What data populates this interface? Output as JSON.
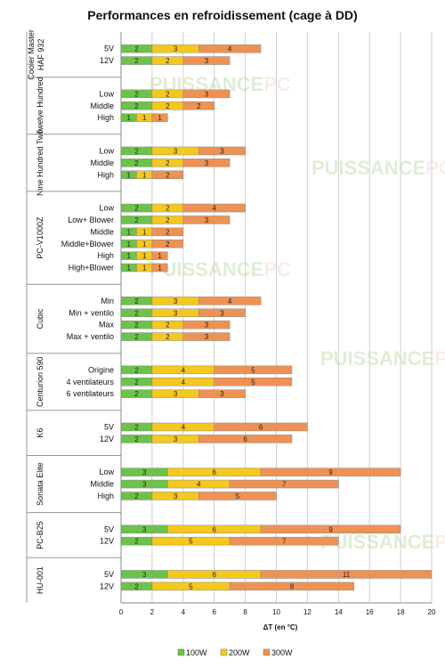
{
  "chart_data": {
    "type": "bar",
    "orientation": "horizontal",
    "stacked": true,
    "title": "Performances en refroidissement (cage à DD)",
    "xlabel": "ΔT (en °C)",
    "xlim": [
      0,
      20
    ],
    "xticks": [
      0,
      2,
      4,
      6,
      8,
      10,
      12,
      14,
      16,
      18,
      20
    ],
    "grid": true,
    "legend_position": "bottom",
    "series": [
      {
        "name": "100W",
        "color": "#6cc24a"
      },
      {
        "name": "200W",
        "color": "#f4c81e"
      },
      {
        "name": "300W",
        "color": "#ee9254"
      }
    ],
    "groups": [
      {
        "name": "Cooler Master HAF 932",
        "rows": [
          {
            "label": "5V",
            "values": [
              2,
              3,
              4
            ]
          },
          {
            "label": "12V",
            "values": [
              2,
              2,
              3
            ]
          }
        ]
      },
      {
        "name": "Twelve Hundred",
        "rows": [
          {
            "label": "Low",
            "values": [
              2,
              2,
              3
            ]
          },
          {
            "label": "Middle",
            "values": [
              2,
              2,
              2
            ]
          },
          {
            "label": "High",
            "values": [
              1,
              1,
              1
            ]
          }
        ]
      },
      {
        "name": "Nine Hundred Two",
        "rows": [
          {
            "label": "Low",
            "values": [
              2,
              3,
              3
            ]
          },
          {
            "label": "Middle",
            "values": [
              2,
              2,
              3
            ]
          },
          {
            "label": "High",
            "values": [
              1,
              1,
              2
            ]
          }
        ]
      },
      {
        "name": "PC-V1000Z",
        "rows": [
          {
            "label": "Low",
            "values": [
              2,
              2,
              4
            ]
          },
          {
            "label": "Low+ Blower",
            "values": [
              2,
              2,
              3
            ]
          },
          {
            "label": "Middle",
            "values": [
              1,
              1,
              2
            ]
          },
          {
            "label": "Middle+Blower",
            "values": [
              1,
              1,
              2
            ]
          },
          {
            "label": "High",
            "values": [
              1,
              1,
              1
            ]
          },
          {
            "label": "High+Blower",
            "values": [
              1,
              1,
              1
            ]
          }
        ]
      },
      {
        "name": "Cubic",
        "rows": [
          {
            "label": "Min",
            "values": [
              2,
              3,
              4
            ]
          },
          {
            "label": "Min + ventilo",
            "values": [
              2,
              3,
              3
            ]
          },
          {
            "label": "Max",
            "values": [
              2,
              2,
              3
            ]
          },
          {
            "label": "Max + ventilo",
            "values": [
              2,
              2,
              3
            ]
          }
        ]
      },
      {
        "name": "Centurion 590",
        "rows": [
          {
            "label": "Origine",
            "values": [
              2,
              4,
              5
            ]
          },
          {
            "label": "4 ventilateurs",
            "values": [
              2,
              4,
              5
            ]
          },
          {
            "label": "6 ventilateurs",
            "values": [
              2,
              3,
              3
            ]
          }
        ]
      },
      {
        "name": "K6",
        "rows": [
          {
            "label": "5V",
            "values": [
              2,
              4,
              6
            ]
          },
          {
            "label": "12V",
            "values": [
              2,
              3,
              6
            ]
          }
        ]
      },
      {
        "name": "Sonata Elite",
        "rows": [
          {
            "label": "Low",
            "values": [
              3,
              6,
              9
            ]
          },
          {
            "label": "Middle",
            "values": [
              3,
              4,
              7
            ]
          },
          {
            "label": "High",
            "values": [
              2,
              3,
              5
            ]
          }
        ]
      },
      {
        "name": "PC-B25",
        "rows": [
          {
            "label": "5V",
            "values": [
              3,
              6,
              9
            ]
          },
          {
            "label": "12V",
            "values": [
              2,
              5,
              7
            ]
          }
        ]
      },
      {
        "name": "HU-001",
        "rows": [
          {
            "label": "5V",
            "values": [
              3,
              6,
              11
            ]
          },
          {
            "label": "12V",
            "values": [
              2,
              5,
              8
            ]
          }
        ]
      }
    ]
  },
  "watermark": {
    "part1": "PUISSANCE",
    "part2": "PC"
  }
}
